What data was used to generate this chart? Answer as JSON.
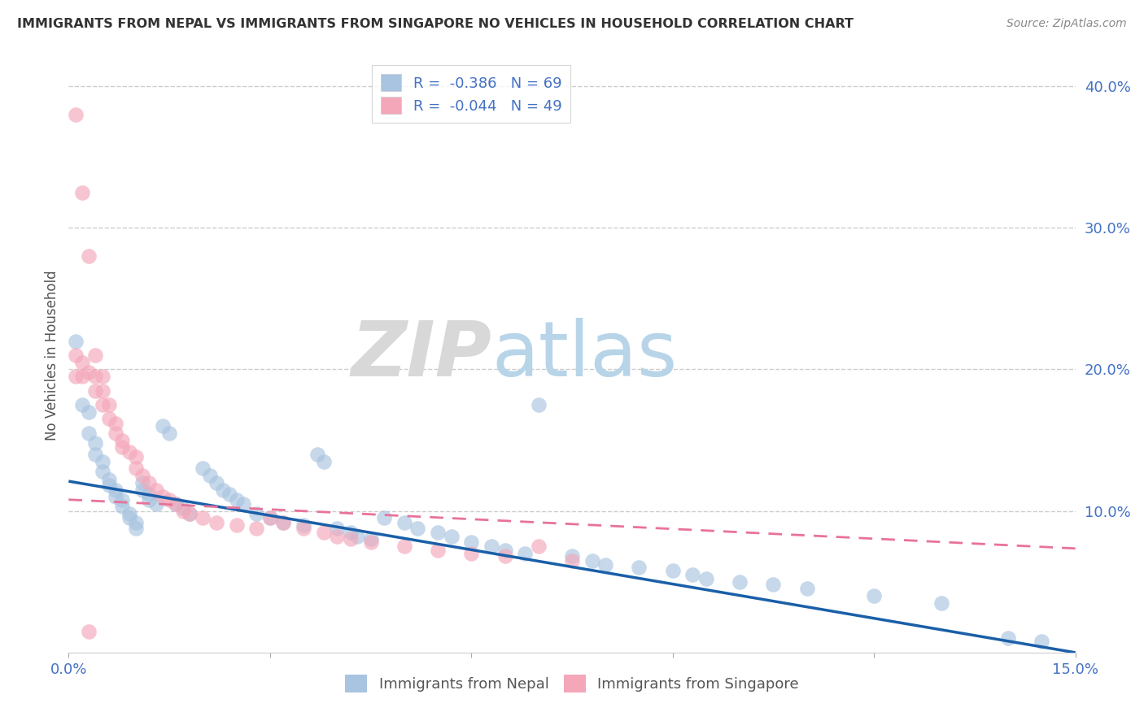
{
  "title": "IMMIGRANTS FROM NEPAL VS IMMIGRANTS FROM SINGAPORE NO VEHICLES IN HOUSEHOLD CORRELATION CHART",
  "source": "Source: ZipAtlas.com",
  "ylabel": "No Vehicles in Household",
  "xlim": [
    0.0,
    0.15
  ],
  "ylim": [
    0.0,
    0.42
  ],
  "nepal_R": -0.386,
  "nepal_N": 69,
  "singapore_R": -0.044,
  "singapore_N": 49,
  "nepal_color": "#a8c4e0",
  "singapore_color": "#f4a7b9",
  "nepal_line_color": "#1a5fa8",
  "singapore_line_color": "#e8729a",
  "legend_nepal_label": "R =  -0.386   N = 69",
  "legend_singapore_label": "R =  -0.044   N = 49",
  "watermark_zip": "ZIP",
  "watermark_atlas": "atlas",
  "nepal_x": [
    0.001,
    0.002,
    0.003,
    0.003,
    0.004,
    0.004,
    0.005,
    0.005,
    0.006,
    0.006,
    0.007,
    0.007,
    0.008,
    0.008,
    0.009,
    0.009,
    0.01,
    0.01,
    0.011,
    0.011,
    0.012,
    0.012,
    0.013,
    0.014,
    0.015,
    0.016,
    0.017,
    0.018,
    0.02,
    0.021,
    0.022,
    0.023,
    0.024,
    0.025,
    0.026,
    0.028,
    0.03,
    0.032,
    0.035,
    0.037,
    0.038,
    0.04,
    0.042,
    0.043,
    0.045,
    0.047,
    0.05,
    0.052,
    0.055,
    0.057,
    0.06,
    0.063,
    0.065,
    0.068,
    0.07,
    0.075,
    0.078,
    0.08,
    0.085,
    0.09,
    0.093,
    0.095,
    0.1,
    0.105,
    0.11,
    0.12,
    0.13,
    0.14,
    0.145
  ],
  "nepal_y": [
    0.22,
    0.175,
    0.17,
    0.155,
    0.148,
    0.14,
    0.135,
    0.128,
    0.122,
    0.118,
    0.115,
    0.11,
    0.108,
    0.103,
    0.098,
    0.095,
    0.092,
    0.088,
    0.12,
    0.115,
    0.112,
    0.108,
    0.105,
    0.16,
    0.155,
    0.105,
    0.102,
    0.098,
    0.13,
    0.125,
    0.12,
    0.115,
    0.112,
    0.108,
    0.105,
    0.098,
    0.095,
    0.092,
    0.09,
    0.14,
    0.135,
    0.088,
    0.085,
    0.082,
    0.08,
    0.095,
    0.092,
    0.088,
    0.085,
    0.082,
    0.078,
    0.075,
    0.072,
    0.07,
    0.175,
    0.068,
    0.065,
    0.062,
    0.06,
    0.058,
    0.055,
    0.052,
    0.05,
    0.048,
    0.045,
    0.04,
    0.035,
    0.01,
    0.008
  ],
  "singapore_x": [
    0.001,
    0.001,
    0.001,
    0.002,
    0.002,
    0.002,
    0.003,
    0.003,
    0.003,
    0.004,
    0.004,
    0.004,
    0.005,
    0.005,
    0.005,
    0.006,
    0.006,
    0.007,
    0.007,
    0.008,
    0.008,
    0.009,
    0.01,
    0.01,
    0.011,
    0.012,
    0.013,
    0.014,
    0.015,
    0.016,
    0.017,
    0.018,
    0.02,
    0.022,
    0.025,
    0.028,
    0.03,
    0.032,
    0.035,
    0.038,
    0.04,
    0.042,
    0.045,
    0.05,
    0.055,
    0.06,
    0.065,
    0.07,
    0.075
  ],
  "singapore_y": [
    0.38,
    0.21,
    0.195,
    0.325,
    0.205,
    0.195,
    0.28,
    0.198,
    0.015,
    0.21,
    0.195,
    0.185,
    0.195,
    0.185,
    0.175,
    0.175,
    0.165,
    0.162,
    0.155,
    0.15,
    0.145,
    0.142,
    0.138,
    0.13,
    0.125,
    0.12,
    0.115,
    0.11,
    0.108,
    0.105,
    0.1,
    0.098,
    0.095,
    0.092,
    0.09,
    0.088,
    0.095,
    0.092,
    0.088,
    0.085,
    0.082,
    0.08,
    0.078,
    0.075,
    0.072,
    0.07,
    0.068,
    0.075,
    0.065
  ]
}
